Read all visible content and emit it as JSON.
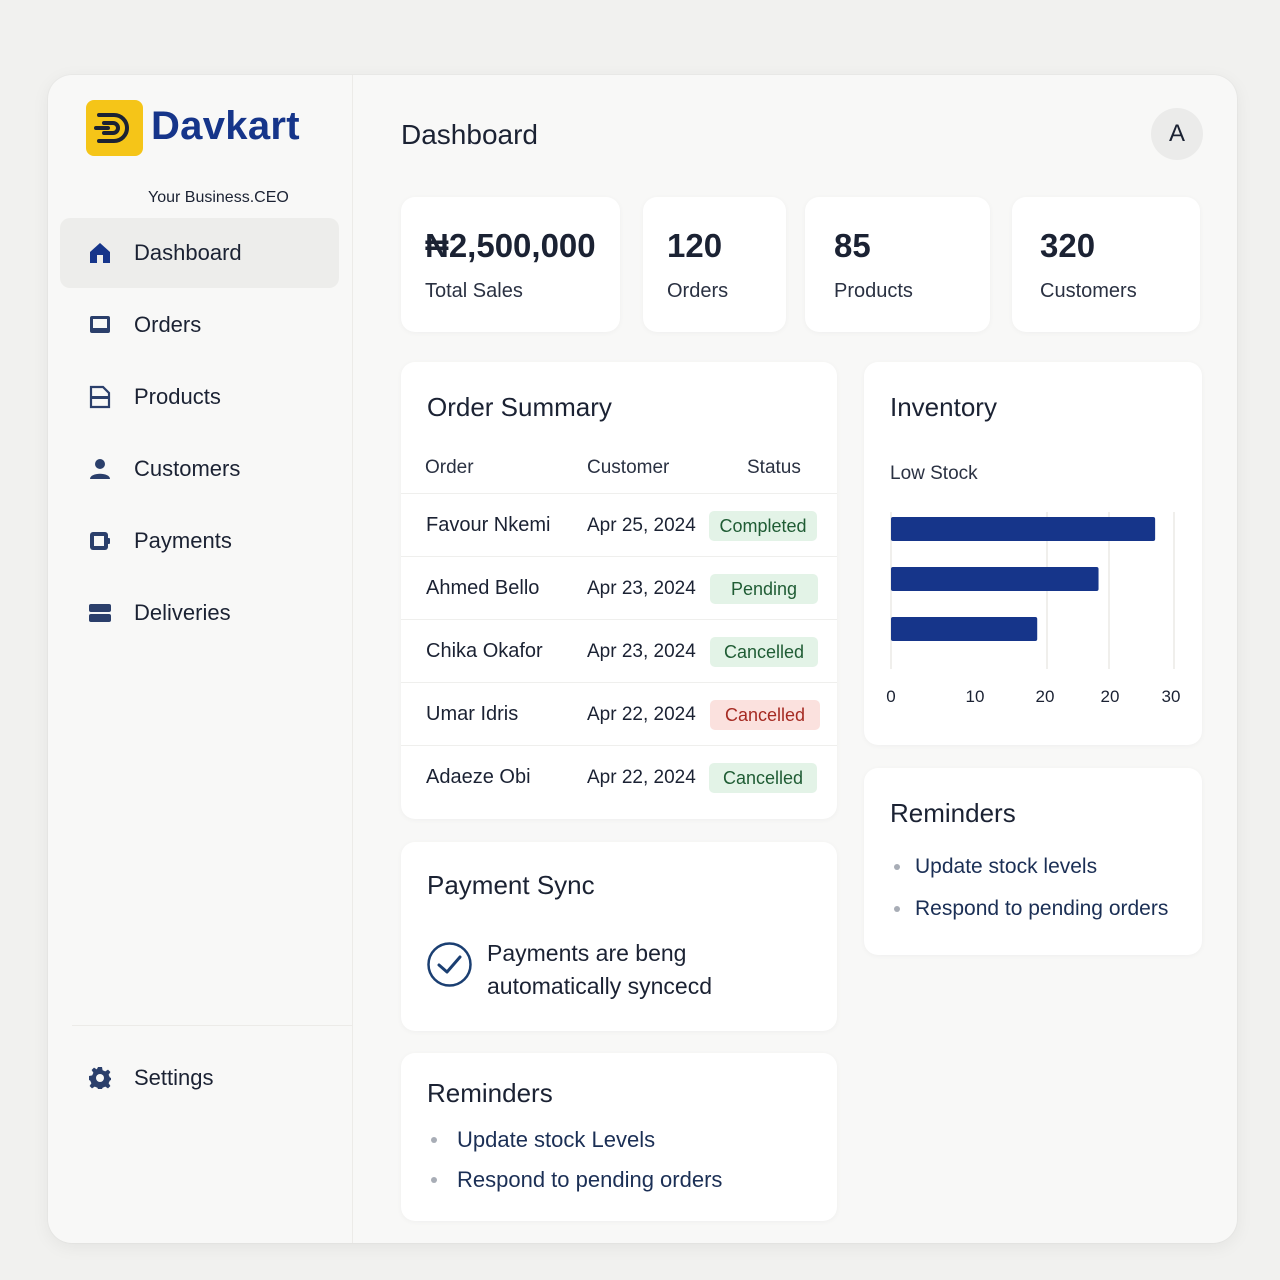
{
  "brand": {
    "name": "Davkart",
    "tagline": "Your Business.CEO",
    "accent": "#16358a",
    "logo_bg": "#f5c518"
  },
  "sidebar": {
    "items": [
      {
        "label": "Dashboard",
        "icon": "home-icon",
        "active": true
      },
      {
        "label": "Orders",
        "icon": "monitor-icon",
        "active": false
      },
      {
        "label": "Products",
        "icon": "document-icon",
        "active": false
      },
      {
        "label": "Customers",
        "icon": "user-icon",
        "active": false
      },
      {
        "label": "Payments",
        "icon": "wallet-icon",
        "active": false
      },
      {
        "label": "Deliveries",
        "icon": "stack-icon",
        "active": false
      }
    ],
    "settings": {
      "label": "Settings",
      "icon": "gear-icon"
    }
  },
  "header": {
    "title": "Dashboard",
    "avatar_initial": "A"
  },
  "stats": [
    {
      "value": "₦2,500,000",
      "label": "Total Sales"
    },
    {
      "value": "120",
      "label": "Orders"
    },
    {
      "value": "85",
      "label": "Products"
    },
    {
      "value": "320",
      "customers_label": "",
      "label": "Customers"
    }
  ],
  "order_summary": {
    "title": "Order Summary",
    "columns": [
      "Order",
      "Customer",
      "Status"
    ],
    "rows": [
      {
        "name": "Favour Nkemi",
        "date": "Apr 25, 2024",
        "status": "Completed",
        "tone": "green"
      },
      {
        "name": "Ahmed Bello",
        "date": "Apr 23, 2024",
        "status": "Pending",
        "tone": "green"
      },
      {
        "name": "Chika Okafor",
        "date": "Apr 23, 2024",
        "status": "Cancelled",
        "tone": "green"
      },
      {
        "name": "Umar Idris",
        "date": "Apr 22, 2024",
        "status": "Cancelled",
        "tone": "red"
      },
      {
        "name": "Adaeze Obi",
        "date": "Apr 22, 2024",
        "status": "Cancelled",
        "tone": "green"
      }
    ]
  },
  "payment_sync": {
    "title": "Payment Sync",
    "message_line1": "Payments are beng",
    "message_line2": "automatically syncecd"
  },
  "reminders_main": {
    "title": "Reminders",
    "items": [
      "Update stock Levels",
      "Respond to pending orders"
    ]
  },
  "inventory": {
    "title": "Inventory",
    "subtitle": "Low Stock"
  },
  "reminders_side": {
    "title": "Reminders",
    "items": [
      "Update stock levels",
      "Respond to pending orders"
    ]
  },
  "chart_data": {
    "type": "bar",
    "orientation": "horizontal",
    "title": "Inventory",
    "subtitle": "Low Stock",
    "categories": [
      "",
      "",
      ""
    ],
    "values": [
      28,
      22,
      15.5
    ],
    "x_tick_labels": [
      "0",
      "10",
      "20",
      "20",
      "30"
    ],
    "xlim": [
      0,
      30
    ],
    "grid": true,
    "bar_color": "#16358a"
  }
}
